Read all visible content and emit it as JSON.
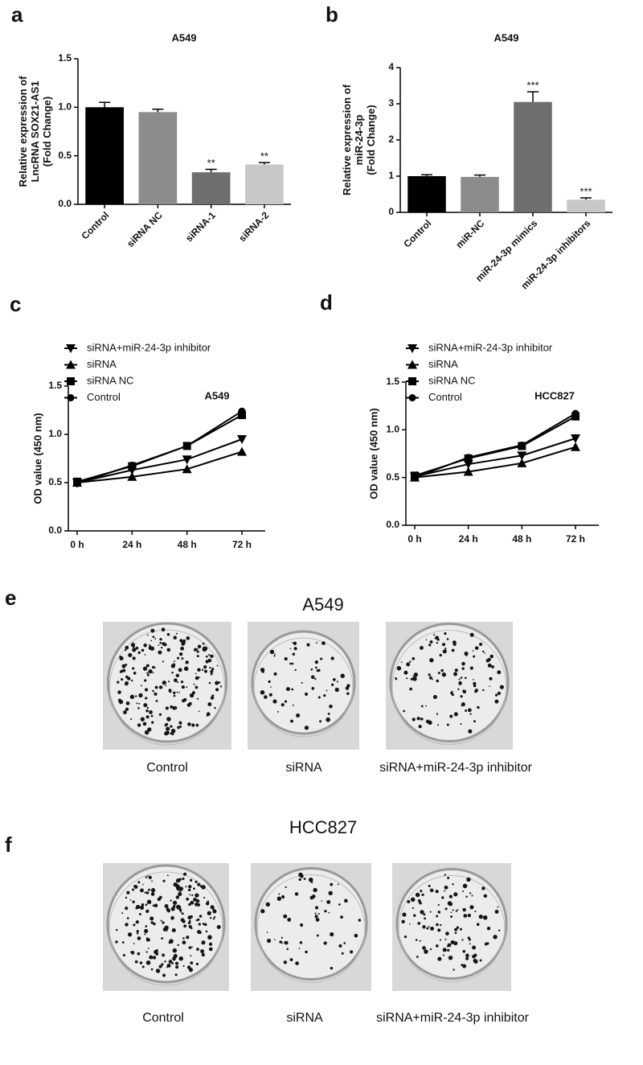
{
  "chart_data": [
    {
      "type": "bar",
      "panel": "a",
      "title": "A549",
      "ylabel": [
        "Relative expression of",
        "LncRNA SOX21-AS1",
        "(Fold Change)"
      ],
      "categories": [
        "Control",
        "siRNA NC",
        "siRNA-1",
        "siRNA-2"
      ],
      "values": [
        1.0,
        0.95,
        0.33,
        0.41
      ],
      "errors": [
        0.05,
        0.03,
        0.03,
        0.02
      ],
      "annotations": [
        null,
        null,
        "**",
        "**"
      ],
      "colors": [
        "#000000",
        "#8c8c8c",
        "#6e6e6e",
        "#c8c8c8"
      ],
      "ylim": [
        0,
        1.5
      ],
      "yticks": [
        {
          "value": 0,
          "label": "0.0"
        },
        0.5,
        {
          "value": 1,
          "label": "1.0"
        },
        1.5
      ]
    },
    {
      "type": "bar",
      "panel": "b",
      "title": "A549",
      "ylabel": [
        "Relative expression of",
        "miR-24-3p",
        "(Fold Change)"
      ],
      "categories": [
        "Control",
        "miR-NC",
        "miR-24-3p mimics",
        "miR-24-3p inhibitors"
      ],
      "values": [
        1.0,
        0.98,
        3.05,
        0.35
      ],
      "errors": [
        0.04,
        0.05,
        0.28,
        0.05
      ],
      "annotations": [
        null,
        null,
        "***",
        "***"
      ],
      "colors": [
        "#000000",
        "#8c8c8c",
        "#6e6e6e",
        "#c8c8c8"
      ],
      "ylim": [
        0,
        4
      ],
      "yticks": [
        0,
        1,
        2,
        3,
        4
      ]
    },
    {
      "type": "line",
      "panel": "c",
      "annotation": "A549",
      "ylabel": "OD value (450 nm)",
      "categories": [
        "0 h",
        "24 h",
        "48 h",
        "72 h"
      ],
      "series": [
        {
          "name": "siRNA+miR-24-3p inhibitor",
          "marker": "triangle-down",
          "color": "#000000",
          "values": [
            0.5,
            0.63,
            0.74,
            0.95
          ]
        },
        {
          "name": "siRNA",
          "marker": "triangle-up",
          "color": "#000000",
          "values": [
            0.5,
            0.56,
            0.64,
            0.82
          ]
        },
        {
          "name": "siRNA NC",
          "marker": "square",
          "color": "#000000",
          "values": [
            0.51,
            0.67,
            0.88,
            1.2
          ]
        },
        {
          "name": "Control",
          "marker": "circle",
          "color": "#000000",
          "values": [
            0.49,
            0.68,
            0.88,
            1.24
          ]
        }
      ],
      "ylim": [
        0,
        1.5
      ],
      "yticks": [
        {
          "value": 0,
          "label": "0.0"
        },
        0.5,
        {
          "value": 1,
          "label": "1.0"
        },
        1.5
      ]
    },
    {
      "type": "line",
      "panel": "d",
      "annotation": "HCC827",
      "ylabel": "OD value (450 nm)",
      "categories": [
        "0 h",
        "24 h",
        "48 h",
        "72 h"
      ],
      "series": [
        {
          "name": "siRNA+miR-24-3p inhibitor",
          "marker": "triangle-down",
          "color": "#000000",
          "values": [
            0.51,
            0.64,
            0.73,
            0.91
          ]
        },
        {
          "name": "siRNA",
          "marker": "triangle-up",
          "color": "#000000",
          "values": [
            0.5,
            0.56,
            0.65,
            0.82
          ]
        },
        {
          "name": "siRNA NC",
          "marker": "square",
          "color": "#000000",
          "values": [
            0.52,
            0.7,
            0.83,
            1.14
          ]
        },
        {
          "name": "Control",
          "marker": "circle",
          "color": "#000000",
          "values": [
            0.5,
            0.71,
            0.84,
            1.17
          ]
        }
      ],
      "ylim": [
        0,
        1.5
      ],
      "yticks": [
        {
          "value": 0,
          "label": "0.0"
        },
        0.5,
        {
          "value": 1,
          "label": "1.0"
        },
        1.5
      ]
    }
  ],
  "plates": [
    {
      "panel": "e",
      "title": "A549",
      "captions": [
        "Control",
        "siRNA",
        "siRNA+miR-24-3p inhibitor"
      ]
    },
    {
      "panel": "f",
      "title": "HCC827",
      "captions": [
        "Control",
        "siRNA",
        "siRNA+miR-24-3p inhibitor"
      ]
    }
  ]
}
